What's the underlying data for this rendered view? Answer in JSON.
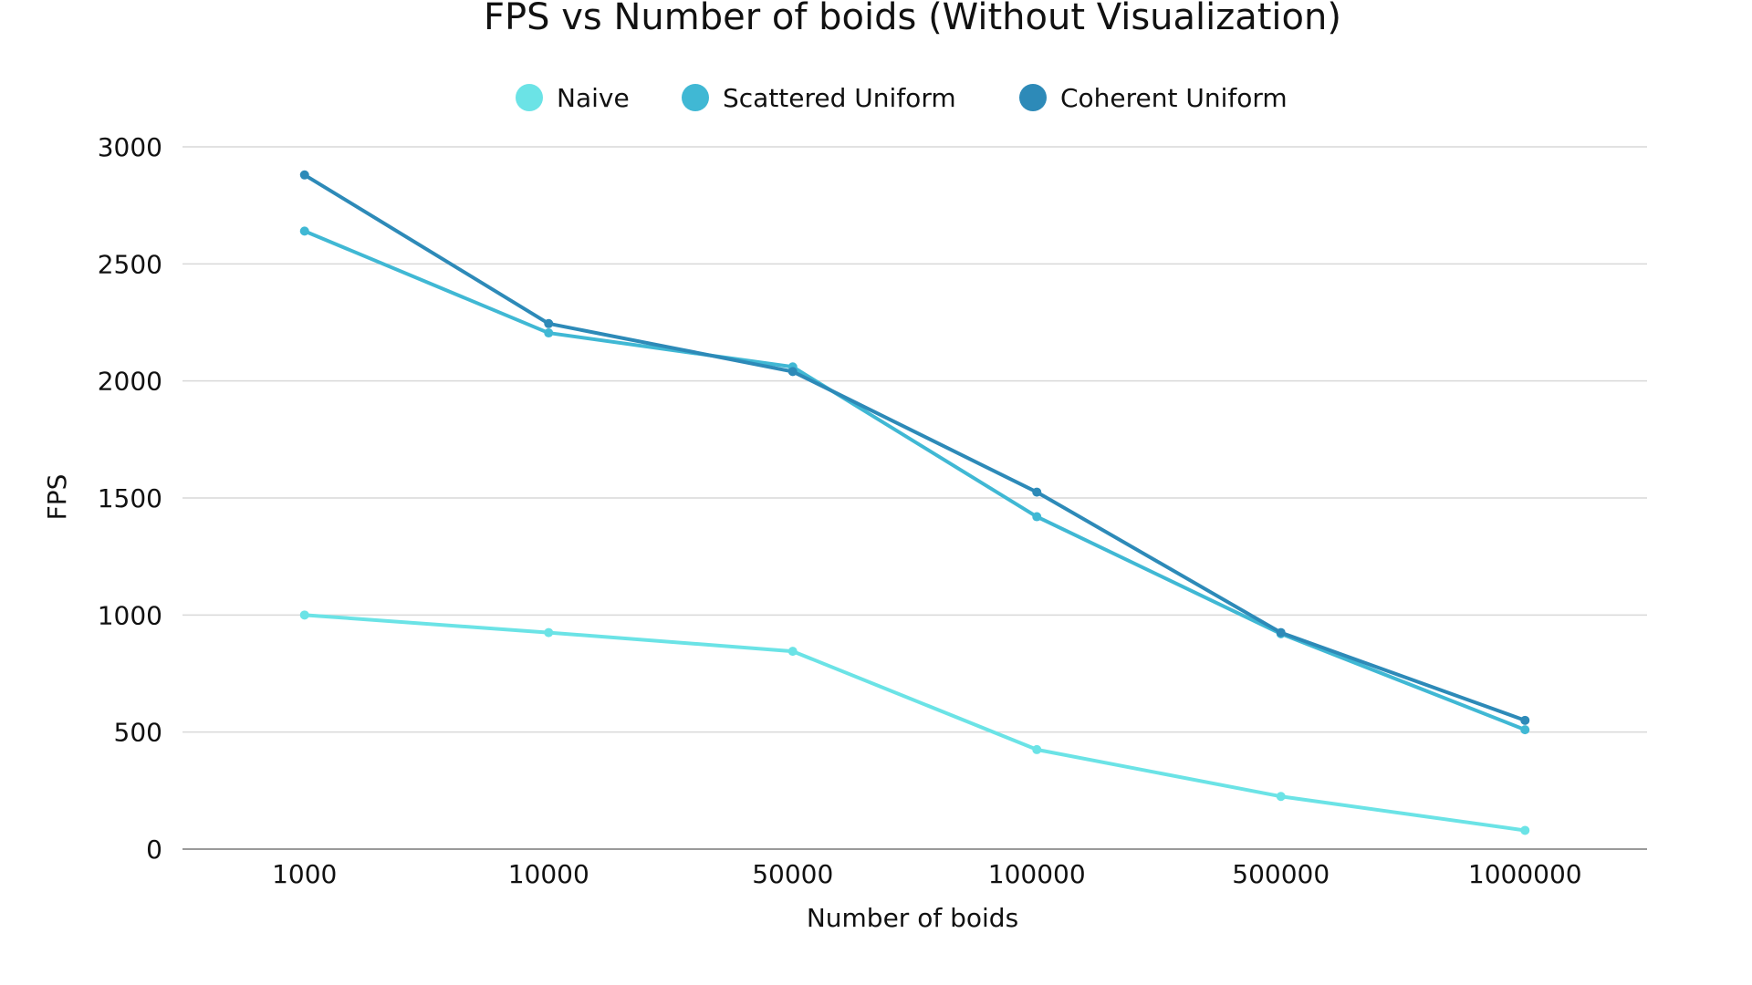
{
  "chart_data": {
    "type": "line",
    "title": "FPS vs Number of boids (Without Visualization)",
    "xlabel": "Number of boids",
    "ylabel": "FPS",
    "categories": [
      "1000",
      "10000",
      "50000",
      "100000",
      "500000",
      "1000000"
    ],
    "ylim": [
      0,
      3000
    ],
    "yticks": [
      0,
      500,
      1000,
      1500,
      2000,
      2500,
      3000
    ],
    "grid": true,
    "legend_position": "top-center",
    "series": [
      {
        "name": "Naive",
        "color": "#6be3e6",
        "values": [
          1000,
          925,
          845,
          425,
          225,
          80
        ]
      },
      {
        "name": "Scattered Uniform",
        "color": "#40b8d4",
        "values": [
          2640,
          2205,
          2060,
          1420,
          920,
          510
        ]
      },
      {
        "name": "Coherent Uniform",
        "color": "#2d8ab8",
        "values": [
          2880,
          2245,
          2040,
          1525,
          925,
          550
        ]
      }
    ]
  }
}
